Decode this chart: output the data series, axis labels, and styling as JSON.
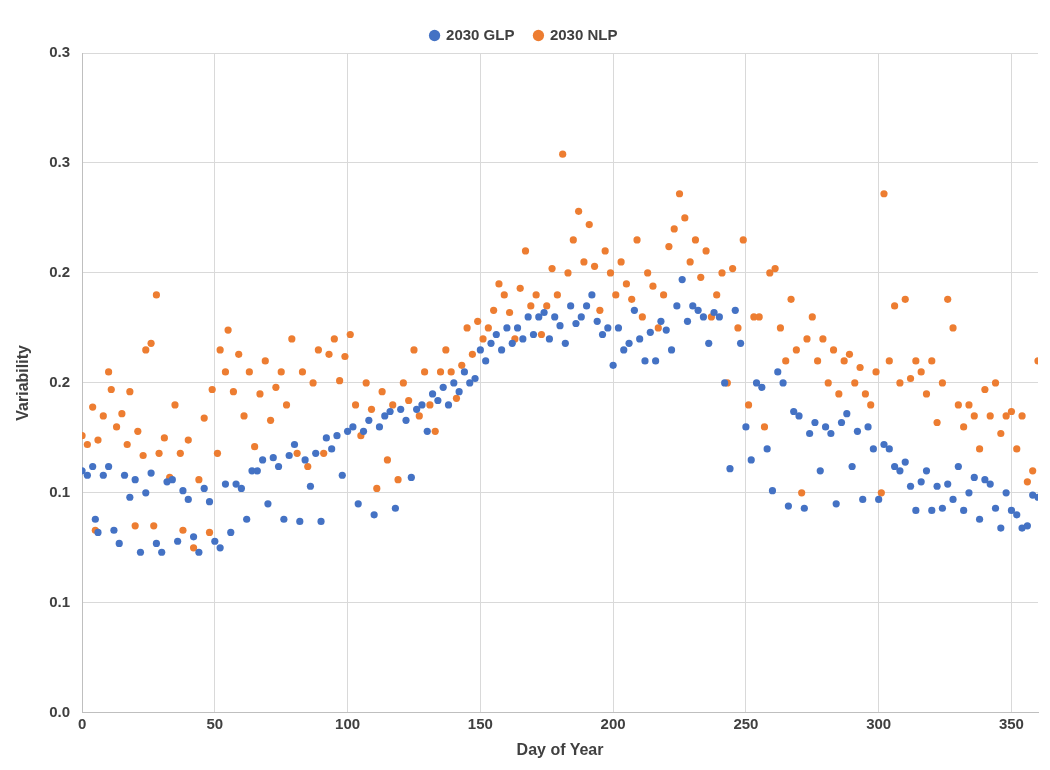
{
  "chart_data": {
    "type": "scatter",
    "xlabel": "Day of Year",
    "ylabel": "Variability",
    "legend": "top",
    "grid": true,
    "marker": "circle",
    "xlim": [
      0,
      360
    ],
    "xticks": [
      0,
      50,
      100,
      150,
      200,
      250,
      300,
      350
    ],
    "ylim": [
      0,
      0.3
    ],
    "yticks": [
      {
        "value": 0,
        "label": "0.0"
      },
      {
        "value": 0.05,
        "label": "0.1"
      },
      {
        "value": 0.1,
        "label": "0.1"
      },
      {
        "value": 0.15,
        "label": "0.2"
      },
      {
        "value": 0.2,
        "label": "0.2"
      },
      {
        "value": 0.25,
        "label": "0.3"
      },
      {
        "value": 0.3,
        "label": "0.3"
      }
    ],
    "series": [
      {
        "name": "2030 GLP",
        "color": "#4472c4",
        "x": [
          0,
          2,
          4,
          5,
          6,
          8,
          10,
          12,
          14,
          16,
          18,
          20,
          22,
          24,
          26,
          28,
          30,
          32,
          34,
          36,
          38,
          40,
          42,
          44,
          46,
          48,
          50,
          52,
          54,
          56,
          58,
          60,
          62,
          64,
          66,
          68,
          70,
          72,
          74,
          76,
          78,
          80,
          82,
          84,
          86,
          88,
          90,
          92,
          94,
          96,
          98,
          100,
          102,
          104,
          106,
          108,
          110,
          112,
          114,
          116,
          118,
          120,
          122,
          124,
          126,
          128,
          130,
          132,
          134,
          136,
          138,
          140,
          142,
          144,
          146,
          148,
          150,
          152,
          154,
          156,
          158,
          160,
          162,
          164,
          166,
          168,
          170,
          172,
          174,
          176,
          178,
          180,
          182,
          184,
          186,
          188,
          190,
          192,
          194,
          196,
          198,
          200,
          202,
          204,
          206,
          208,
          210,
          212,
          214,
          216,
          218,
          220,
          222,
          224,
          226,
          228,
          230,
          232,
          234,
          236,
          238,
          240,
          242,
          244,
          246,
          248,
          250,
          252,
          254,
          256,
          258,
          260,
          262,
          264,
          266,
          268,
          270,
          272,
          274,
          276,
          278,
          280,
          282,
          284,
          286,
          288,
          290,
          292,
          294,
          296,
          298,
          300,
          302,
          304,
          306,
          308,
          310,
          312,
          314,
          316,
          318,
          320,
          322,
          324,
          326,
          328,
          330,
          332,
          334,
          336,
          338,
          340,
          342,
          344,
          346,
          348,
          350,
          352,
          354,
          356,
          358,
          360
        ],
        "values": [
          0.11,
          0.108,
          0.112,
          0.088,
          0.082,
          0.108,
          0.112,
          0.083,
          0.077,
          0.108,
          0.098,
          0.106,
          0.073,
          0.1,
          0.109,
          0.077,
          0.073,
          0.105,
          0.106,
          0.078,
          0.101,
          0.097,
          0.08,
          0.073,
          0.102,
          0.096,
          0.078,
          0.075,
          0.104,
          0.082,
          0.104,
          0.102,
          0.088,
          0.11,
          0.11,
          0.115,
          0.095,
          0.116,
          0.112,
          0.088,
          0.117,
          0.122,
          0.087,
          0.115,
          0.103,
          0.118,
          0.087,
          0.125,
          0.12,
          0.126,
          0.108,
          0.128,
          0.13,
          0.095,
          0.128,
          0.133,
          0.09,
          0.13,
          0.135,
          0.137,
          0.093,
          0.138,
          0.133,
          0.107,
          0.138,
          0.14,
          0.128,
          0.145,
          0.142,
          0.148,
          0.14,
          0.15,
          0.146,
          0.155,
          0.15,
          0.152,
          0.165,
          0.16,
          0.168,
          0.172,
          0.165,
          0.175,
          0.168,
          0.175,
          0.17,
          0.18,
          0.172,
          0.18,
          0.182,
          0.17,
          0.18,
          0.176,
          0.168,
          0.185,
          0.177,
          0.18,
          0.185,
          0.19,
          0.178,
          0.172,
          0.175,
          0.158,
          0.175,
          0.165,
          0.168,
          0.183,
          0.17,
          0.16,
          0.173,
          0.16,
          0.178,
          0.174,
          0.165,
          0.185,
          0.197,
          0.178,
          0.185,
          0.183,
          0.18,
          0.168,
          0.182,
          0.18,
          0.15,
          0.111,
          0.183,
          0.168,
          0.13,
          0.115,
          0.15,
          0.148,
          0.12,
          0.101,
          0.155,
          0.15,
          0.094,
          0.137,
          0.135,
          0.093,
          0.127,
          0.132,
          0.11,
          0.13,
          0.127,
          0.095,
          0.132,
          0.136,
          0.112,
          0.128,
          0.097,
          0.13,
          0.12,
          0.097,
          0.122,
          0.12,
          0.112,
          0.11,
          0.114,
          0.103,
          0.092,
          0.105,
          0.11,
          0.092,
          0.103,
          0.093,
          0.104,
          0.097,
          0.112,
          0.092,
          0.1,
          0.107,
          0.088,
          0.106,
          0.104,
          0.093,
          0.084,
          0.1,
          0.092,
          0.09,
          0.084,
          0.085,
          0.099,
          0.098
        ]
      },
      {
        "name": "2030 NLP",
        "color": "#ed7d31",
        "x": [
          0,
          2,
          4,
          5,
          6,
          8,
          10,
          11,
          13,
          15,
          17,
          18,
          20,
          21,
          23,
          24,
          26,
          27,
          28,
          29,
          31,
          33,
          35,
          37,
          38,
          40,
          42,
          44,
          46,
          48,
          49,
          51,
          52,
          54,
          55,
          57,
          59,
          61,
          63,
          65,
          67,
          69,
          71,
          73,
          75,
          77,
          79,
          81,
          83,
          85,
          87,
          89,
          91,
          93,
          95,
          97,
          99,
          101,
          103,
          105,
          107,
          109,
          111,
          113,
          115,
          117,
          119,
          121,
          123,
          125,
          127,
          129,
          131,
          133,
          135,
          137,
          139,
          141,
          143,
          145,
          147,
          149,
          151,
          153,
          155,
          157,
          159,
          161,
          163,
          165,
          167,
          169,
          171,
          173,
          175,
          177,
          179,
          181,
          183,
          185,
          187,
          189,
          191,
          193,
          195,
          197,
          199,
          201,
          203,
          205,
          207,
          209,
          211,
          213,
          215,
          217,
          219,
          221,
          223,
          225,
          227,
          229,
          231,
          233,
          235,
          237,
          239,
          241,
          243,
          245,
          247,
          249,
          251,
          253,
          255,
          257,
          259,
          261,
          263,
          265,
          267,
          269,
          271,
          273,
          275,
          277,
          279,
          281,
          283,
          285,
          287,
          289,
          291,
          293,
          295,
          297,
          299,
          301,
          302,
          304,
          306,
          308,
          310,
          312,
          314,
          316,
          318,
          320,
          322,
          324,
          326,
          328,
          330,
          332,
          334,
          336,
          338,
          340,
          342,
          344,
          346,
          348,
          350,
          352,
          354,
          356,
          358,
          360
        ],
        "values": [
          0.126,
          0.122,
          0.139,
          0.083,
          0.124,
          0.135,
          0.155,
          0.147,
          0.13,
          0.136,
          0.122,
          0.146,
          0.085,
          0.128,
          0.117,
          0.165,
          0.168,
          0.085,
          0.19,
          0.118,
          0.125,
          0.107,
          0.14,
          0.118,
          0.083,
          0.124,
          0.075,
          0.106,
          0.134,
          0.082,
          0.147,
          0.118,
          0.165,
          0.155,
          0.174,
          0.146,
          0.163,
          0.135,
          0.155,
          0.121,
          0.145,
          0.16,
          0.133,
          0.148,
          0.155,
          0.14,
          0.17,
          0.118,
          0.155,
          0.112,
          0.15,
          0.165,
          0.118,
          0.163,
          0.17,
          0.151,
          0.162,
          0.172,
          0.14,
          0.126,
          0.15,
          0.138,
          0.102,
          0.146,
          0.115,
          0.14,
          0.106,
          0.15,
          0.142,
          0.165,
          0.135,
          0.155,
          0.14,
          0.128,
          0.155,
          0.165,
          0.155,
          0.143,
          0.158,
          0.175,
          0.163,
          0.178,
          0.17,
          0.175,
          0.183,
          0.195,
          0.19,
          0.182,
          0.17,
          0.193,
          0.21,
          0.185,
          0.19,
          0.172,
          0.185,
          0.202,
          0.19,
          0.254,
          0.2,
          0.215,
          0.228,
          0.205,
          0.222,
          0.203,
          0.183,
          0.21,
          0.2,
          0.19,
          0.205,
          0.195,
          0.188,
          0.215,
          0.18,
          0.2,
          0.194,
          0.175,
          0.19,
          0.212,
          0.22,
          0.236,
          0.225,
          0.205,
          0.215,
          0.198,
          0.21,
          0.18,
          0.19,
          0.2,
          0.15,
          0.202,
          0.175,
          0.215,
          0.14,
          0.18,
          0.18,
          0.13,
          0.2,
          0.202,
          0.175,
          0.16,
          0.188,
          0.165,
          0.1,
          0.17,
          0.18,
          0.16,
          0.17,
          0.15,
          0.165,
          0.145,
          0.16,
          0.163,
          0.15,
          0.157,
          0.145,
          0.14,
          0.155,
          0.1,
          0.236,
          0.16,
          0.185,
          0.15,
          0.188,
          0.152,
          0.16,
          0.155,
          0.145,
          0.16,
          0.132,
          0.15,
          0.188,
          0.175,
          0.14,
          0.13,
          0.14,
          0.135,
          0.12,
          0.147,
          0.135,
          0.15,
          0.127,
          0.135,
          0.137,
          0.12,
          0.135,
          0.105,
          0.11,
          0.16
        ]
      }
    ]
  }
}
